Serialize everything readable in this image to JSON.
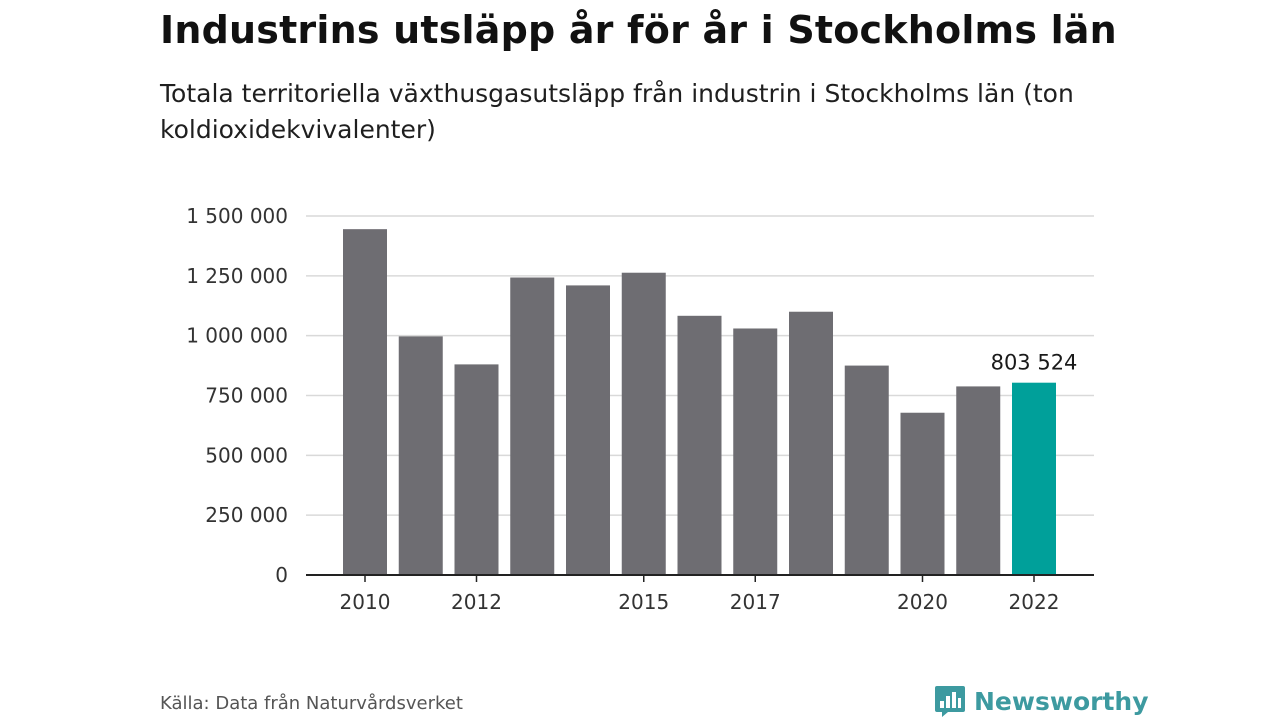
{
  "title": "Industrins utsläpp år för år i Stockholms län",
  "subtitle": "Totala territoriella växthusgasutsläpp från industrin i Stockholms län (ton koldioxidekvivalenter)",
  "source": "Källa: Data från Naturvårdsverket",
  "brand": {
    "name": "Newsworthy",
    "icon": "bar-chart-speech-bubble-icon"
  },
  "colors": {
    "bar": "#6e6d72",
    "highlight": "#00a09a",
    "grid": "#d9d9d9",
    "axis": "#222222",
    "brand": "#3d9aa0"
  },
  "chart_data": {
    "type": "bar",
    "categories": [
      "2010",
      "2011",
      "2012",
      "2013",
      "2014",
      "2015",
      "2016",
      "2017",
      "2018",
      "2019",
      "2020",
      "2021",
      "2022"
    ],
    "values": [
      1445000,
      997000,
      880000,
      1243000,
      1210000,
      1263000,
      1083000,
      1030000,
      1100000,
      875000,
      678000,
      788000,
      803524
    ],
    "highlight_index": 12,
    "data_labels": [
      {
        "index": 12,
        "text": "803 524"
      }
    ],
    "x_tick_labels": [
      "2010",
      "2012",
      "2015",
      "2017",
      "2020",
      "2022"
    ],
    "y_ticks": [
      0,
      250000,
      500000,
      750000,
      1000000,
      1250000,
      1500000
    ],
    "y_tick_labels": [
      "0",
      "250 000",
      "500 000",
      "750 000",
      "1 000 000",
      "1 250 000",
      "1 500 000"
    ],
    "ylim": [
      0,
      1500000
    ],
    "grid": true,
    "xlabel": "",
    "ylabel": ""
  }
}
